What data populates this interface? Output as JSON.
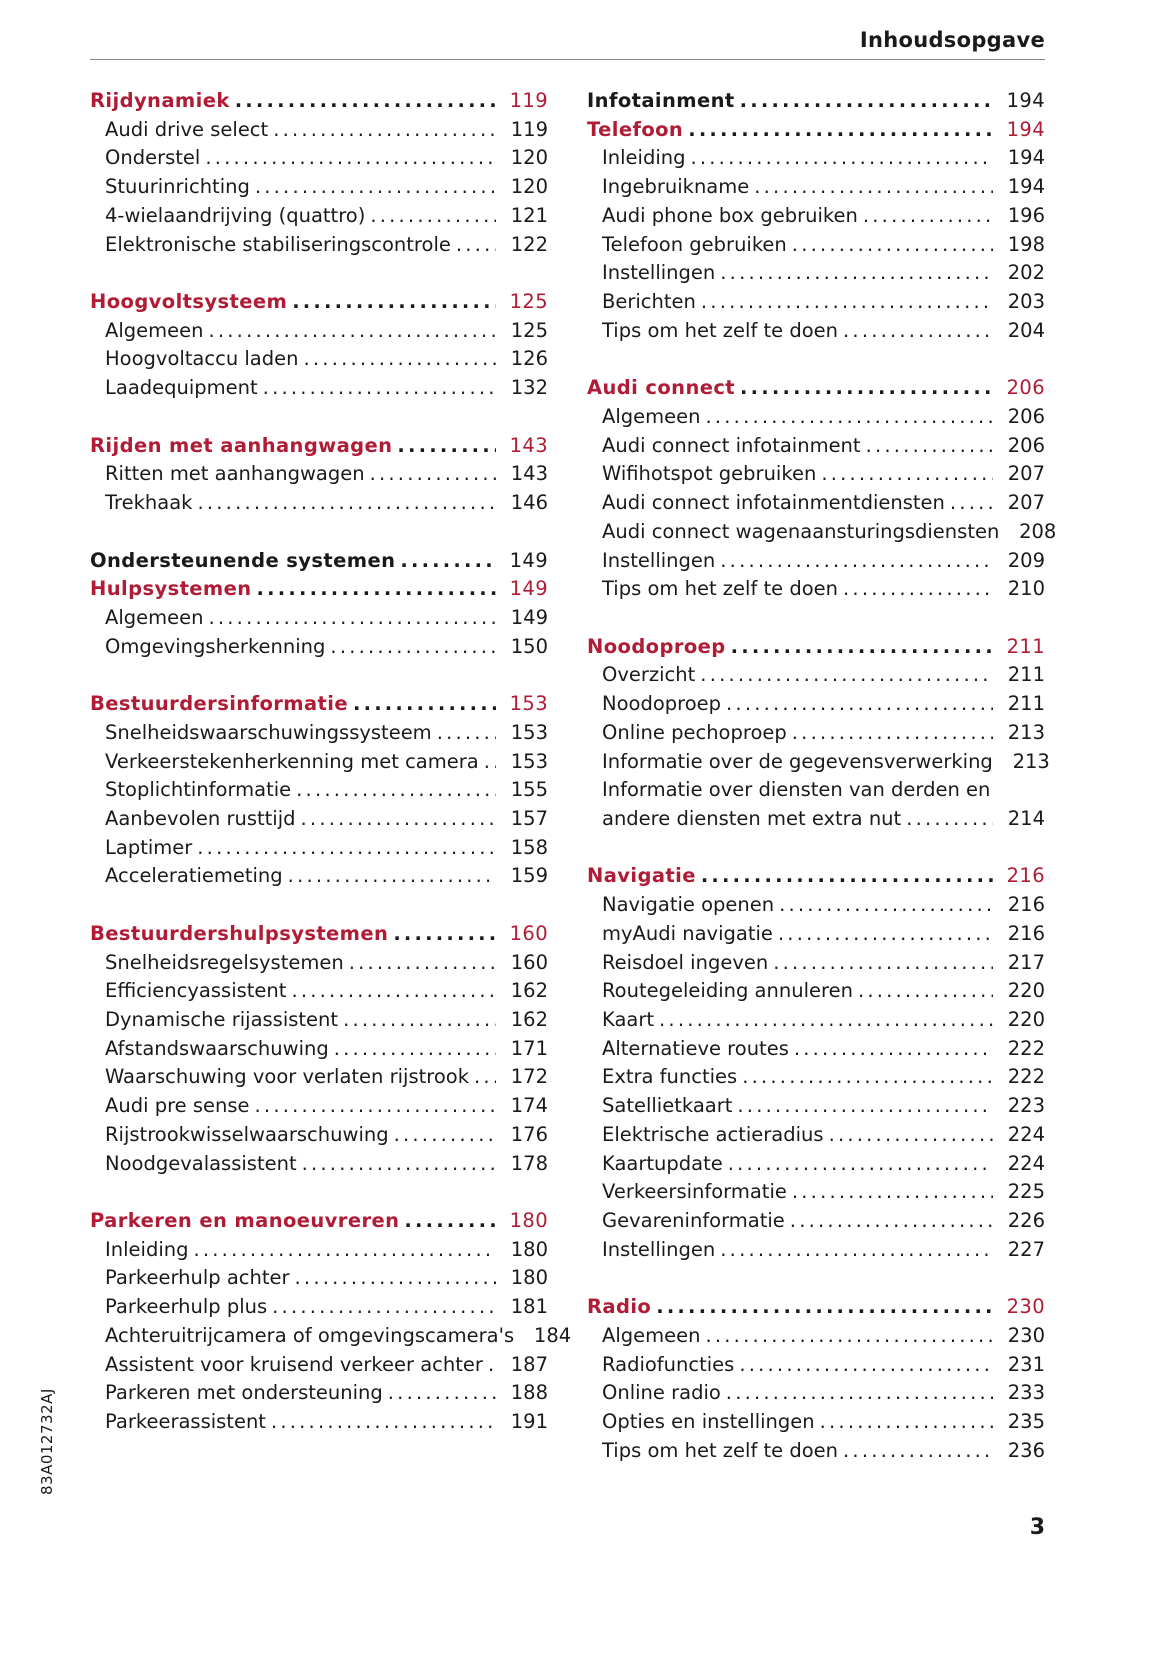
{
  "header": {
    "title": "Inhoudsopgave"
  },
  "accent_color": "#b01c35",
  "side_code": "83A012732AJ",
  "page_number": "3",
  "columns": [
    {
      "entries": [
        {
          "type": "red",
          "label": "Rijdynamiek",
          "page": "119"
        },
        {
          "type": "sub",
          "label": "Audi drive select",
          "page": "119"
        },
        {
          "type": "sub",
          "label": "Onderstel",
          "page": "120"
        },
        {
          "type": "sub",
          "label": "Stuurinrichting",
          "page": "120"
        },
        {
          "type": "sub",
          "label": "4-wielaandrijving (quattro)",
          "page": "121"
        },
        {
          "type": "sub",
          "label": "Elektronische stabiliseringscontrole",
          "page": "122"
        },
        {
          "type": "gap"
        },
        {
          "type": "red",
          "label": "Hoogvoltsysteem",
          "page": "125"
        },
        {
          "type": "sub",
          "label": "Algemeen",
          "page": "125"
        },
        {
          "type": "sub",
          "label": "Hoogvoltaccu laden",
          "page": "126"
        },
        {
          "type": "sub",
          "label": "Laadequipment",
          "page": "132"
        },
        {
          "type": "gap"
        },
        {
          "type": "red",
          "label": "Rijden met aanhangwagen",
          "page": "143"
        },
        {
          "type": "sub",
          "label": "Ritten met aanhangwagen",
          "page": "143"
        },
        {
          "type": "sub",
          "label": "Trekhaak",
          "page": "146"
        },
        {
          "type": "gap"
        },
        {
          "type": "black",
          "label": "Ondersteunende systemen",
          "page": "149"
        },
        {
          "type": "red",
          "label": "Hulpsystemen",
          "page": "149"
        },
        {
          "type": "sub",
          "label": "Algemeen",
          "page": "149"
        },
        {
          "type": "sub",
          "label": "Omgevingsherkenning",
          "page": "150"
        },
        {
          "type": "gap"
        },
        {
          "type": "red",
          "label": "Bestuurdersinformatie",
          "page": "153"
        },
        {
          "type": "sub",
          "label": "Snelheidswaarschuwingssysteem",
          "page": "153"
        },
        {
          "type": "sub",
          "label": "Verkeerstekenherkenning met camera",
          "page": "153"
        },
        {
          "type": "sub",
          "label": "Stoplichtinformatie",
          "page": "155"
        },
        {
          "type": "sub",
          "label": "Aanbevolen rusttijd",
          "page": "157"
        },
        {
          "type": "sub",
          "label": "Laptimer",
          "page": "158"
        },
        {
          "type": "sub",
          "label": "Acceleratiemeting",
          "page": "159"
        },
        {
          "type": "gap"
        },
        {
          "type": "red",
          "label": "Bestuurdershulpsystemen",
          "page": "160"
        },
        {
          "type": "sub",
          "label": "Snelheidsregelsystemen",
          "page": "160"
        },
        {
          "type": "sub",
          "label": "Efficiencyassistent",
          "page": "162"
        },
        {
          "type": "sub",
          "label": "Dynamische rijassistent",
          "page": "162"
        },
        {
          "type": "sub",
          "label": "Afstandswaarschuwing",
          "page": "171"
        },
        {
          "type": "sub",
          "label": "Waarschuwing voor verlaten rijstrook",
          "page": "172"
        },
        {
          "type": "sub",
          "label": "Audi pre sense",
          "page": "174"
        },
        {
          "type": "sub",
          "label": "Rijstrookwisselwaarschuwing",
          "page": "176"
        },
        {
          "type": "sub",
          "label": "Noodgevalassistent",
          "page": "178"
        },
        {
          "type": "gap"
        },
        {
          "type": "red",
          "label": "Parkeren en manoeuvreren",
          "page": "180"
        },
        {
          "type": "sub",
          "label": "Inleiding",
          "page": "180"
        },
        {
          "type": "sub",
          "label": "Parkeerhulp achter",
          "page": "180"
        },
        {
          "type": "sub",
          "label": "Parkeerhulp plus",
          "page": "181"
        },
        {
          "type": "sub",
          "label": "Achteruitrijcamera of omgevingscamera's",
          "page": "184"
        },
        {
          "type": "sub",
          "label": "Assistent voor kruisend verkeer achter",
          "page": "187"
        },
        {
          "type": "sub",
          "label": "Parkeren met ondersteuning",
          "page": "188"
        },
        {
          "type": "sub",
          "label": "Parkeerassistent",
          "page": "191"
        }
      ]
    },
    {
      "entries": [
        {
          "type": "black",
          "label": "Infotainment",
          "page": "194"
        },
        {
          "type": "red",
          "label": "Telefoon",
          "page": "194"
        },
        {
          "type": "sub",
          "label": "Inleiding",
          "page": "194"
        },
        {
          "type": "sub",
          "label": "Ingebruikname",
          "page": "194"
        },
        {
          "type": "sub",
          "label": "Audi phone box gebruiken",
          "page": "196"
        },
        {
          "type": "sub",
          "label": "Telefoon gebruiken",
          "page": "198"
        },
        {
          "type": "sub",
          "label": "Instellingen",
          "page": "202"
        },
        {
          "type": "sub",
          "label": "Berichten",
          "page": "203"
        },
        {
          "type": "sub",
          "label": "Tips om het zelf te doen",
          "page": "204"
        },
        {
          "type": "gap"
        },
        {
          "type": "red",
          "label": "Audi connect",
          "page": "206"
        },
        {
          "type": "sub",
          "label": "Algemeen",
          "page": "206"
        },
        {
          "type": "sub",
          "label": "Audi connect infotainment",
          "page": "206"
        },
        {
          "type": "sub",
          "label": "Wifihotspot gebruiken",
          "page": "207"
        },
        {
          "type": "sub",
          "label": "Audi connect infotainmentdiensten",
          "page": "207"
        },
        {
          "type": "sub",
          "label": "Audi connect wagenaansturingsdiensten",
          "page": "208"
        },
        {
          "type": "sub",
          "label": "Instellingen",
          "page": "209"
        },
        {
          "type": "sub",
          "label": "Tips om het zelf te doen",
          "page": "210"
        },
        {
          "type": "gap"
        },
        {
          "type": "red",
          "label": "Noodoproep",
          "page": "211"
        },
        {
          "type": "sub",
          "label": "Overzicht",
          "page": "211"
        },
        {
          "type": "sub",
          "label": "Noodoproep",
          "page": "211"
        },
        {
          "type": "sub",
          "label": "Online pechoproep",
          "page": "213"
        },
        {
          "type": "sub",
          "label": "Informatie over de gegevensverwerking",
          "page": "213"
        },
        {
          "type": "cont",
          "label": "Informatie over diensten van derden en"
        },
        {
          "type": "sub",
          "label": "andere diensten met extra nut",
          "page": "214"
        },
        {
          "type": "gap"
        },
        {
          "type": "red",
          "label": "Navigatie",
          "page": "216"
        },
        {
          "type": "sub",
          "label": "Navigatie openen",
          "page": "216"
        },
        {
          "type": "sub",
          "label": "myAudi navigatie",
          "page": "216"
        },
        {
          "type": "sub",
          "label": "Reisdoel ingeven",
          "page": "217"
        },
        {
          "type": "sub",
          "label": "Routegeleiding annuleren",
          "page": "220"
        },
        {
          "type": "sub",
          "label": "Kaart",
          "page": "220"
        },
        {
          "type": "sub",
          "label": "Alternatieve routes",
          "page": "222"
        },
        {
          "type": "sub",
          "label": "Extra functies",
          "page": "222"
        },
        {
          "type": "sub",
          "label": "Satellietkaart",
          "page": "223"
        },
        {
          "type": "sub",
          "label": "Elektrische actieradius",
          "page": "224"
        },
        {
          "type": "sub",
          "label": "Kaartupdate",
          "page": "224"
        },
        {
          "type": "sub",
          "label": "Verkeersinformatie",
          "page": "225"
        },
        {
          "type": "sub",
          "label": "Gevareninformatie",
          "page": "226"
        },
        {
          "type": "sub",
          "label": "Instellingen",
          "page": "227"
        },
        {
          "type": "gap"
        },
        {
          "type": "red",
          "label": "Radio",
          "page": "230"
        },
        {
          "type": "sub",
          "label": "Algemeen",
          "page": "230"
        },
        {
          "type": "sub",
          "label": "Radiofuncties",
          "page": "231"
        },
        {
          "type": "sub",
          "label": "Online radio",
          "page": "233"
        },
        {
          "type": "sub",
          "label": "Opties en instellingen",
          "page": "235"
        },
        {
          "type": "sub",
          "label": "Tips om het zelf te doen",
          "page": "236"
        }
      ]
    }
  ]
}
